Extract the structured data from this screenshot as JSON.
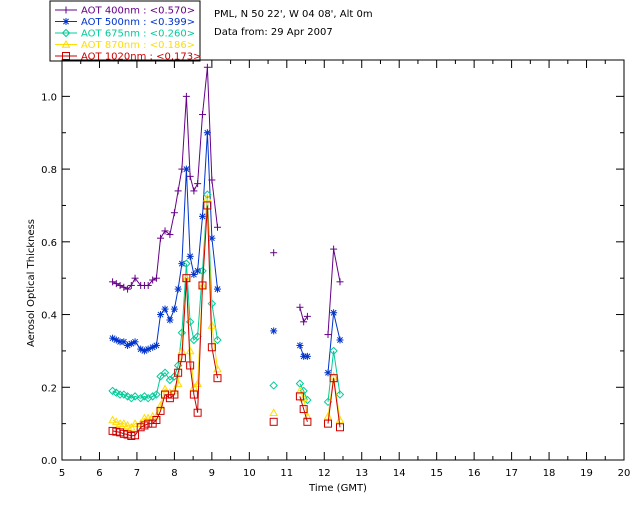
{
  "chart_data": {
    "type": "line",
    "title": "PML, N 50 22', W 04 08', Alt 0m",
    "subtitle": "Data from: 29 Apr 2007",
    "xlabel": "Time (GMT)",
    "ylabel": "Aerosol Optical Thickness",
    "xlim": [
      5,
      20
    ],
    "ylim": [
      0,
      1.1
    ],
    "xticks": [
      "5",
      "6",
      "7",
      "8",
      "9",
      "10",
      "11",
      "12",
      "13",
      "14",
      "15",
      "16",
      "17",
      "18",
      "19",
      "20"
    ],
    "yticks": [
      "0.0",
      "0.2",
      "0.4",
      "0.6",
      "0.8",
      "1.0"
    ],
    "ytick_values": [
      0,
      0.2,
      0.4,
      0.6,
      0.8,
      1.0
    ],
    "grid": false,
    "legend_position": "top-left",
    "series": [
      {
        "name": "AOT  400nm : <0.570>",
        "color": "#660088",
        "marker": "plus",
        "segments": [
          [
            [
              6.35,
              0.49
            ],
            [
              6.45,
              0.485
            ],
            [
              6.55,
              0.48
            ],
            [
              6.65,
              0.475
            ],
            [
              6.75,
              0.47
            ],
            [
              6.85,
              0.48
            ],
            [
              6.95,
              0.5
            ],
            [
              7.1,
              0.48
            ],
            [
              7.2,
              0.48
            ],
            [
              7.3,
              0.48
            ],
            [
              7.42,
              0.495
            ],
            [
              7.52,
              0.5
            ],
            [
              7.63,
              0.61
            ],
            [
              7.75,
              0.63
            ],
            [
              7.88,
              0.62
            ],
            [
              8.0,
              0.68
            ],
            [
              8.1,
              0.74
            ],
            [
              8.2,
              0.8
            ],
            [
              8.32,
              1.0
            ],
            [
              8.42,
              0.78
            ],
            [
              8.52,
              0.74
            ],
            [
              8.62,
              0.76
            ],
            [
              8.75,
              0.95
            ],
            [
              8.88,
              1.08
            ],
            [
              9.0,
              0.77
            ],
            [
              9.15,
              0.64
            ]
          ],
          [
            [
              10.65,
              0.57
            ]
          ],
          [
            [
              11.35,
              0.42
            ],
            [
              11.45,
              0.38
            ],
            [
              11.55,
              0.395
            ]
          ],
          [
            [
              12.1,
              0.345
            ],
            [
              12.25,
              0.58
            ],
            [
              12.42,
              0.49
            ]
          ]
        ]
      },
      {
        "name": "AOT  500nm : <0.399>",
        "color": "#0033cc",
        "marker": "asterisk",
        "segments": [
          [
            [
              6.35,
              0.335
            ],
            [
              6.45,
              0.33
            ],
            [
              6.55,
              0.325
            ],
            [
              6.65,
              0.325
            ],
            [
              6.75,
              0.315
            ],
            [
              6.85,
              0.32
            ],
            [
              6.95,
              0.325
            ],
            [
              7.1,
              0.305
            ],
            [
              7.2,
              0.3
            ],
            [
              7.3,
              0.305
            ],
            [
              7.42,
              0.31
            ],
            [
              7.52,
              0.315
            ],
            [
              7.63,
              0.4
            ],
            [
              7.75,
              0.415
            ],
            [
              7.88,
              0.385
            ],
            [
              8.0,
              0.415
            ],
            [
              8.1,
              0.47
            ],
            [
              8.2,
              0.54
            ],
            [
              8.32,
              0.8
            ],
            [
              8.42,
              0.56
            ],
            [
              8.52,
              0.51
            ],
            [
              8.62,
              0.52
            ],
            [
              8.75,
              0.67
            ],
            [
              8.88,
              0.9
            ],
            [
              9.0,
              0.61
            ],
            [
              9.15,
              0.47
            ]
          ],
          [
            [
              10.65,
              0.355
            ]
          ],
          [
            [
              11.35,
              0.315
            ],
            [
              11.45,
              0.285
            ],
            [
              11.55,
              0.285
            ]
          ],
          [
            [
              12.1,
              0.24
            ],
            [
              12.25,
              0.405
            ],
            [
              12.42,
              0.33
            ]
          ]
        ]
      },
      {
        "name": "AOT  675nm : <0.260>",
        "color": "#00cc99",
        "marker": "diamond",
        "segments": [
          [
            [
              6.35,
              0.19
            ],
            [
              6.45,
              0.185
            ],
            [
              6.55,
              0.18
            ],
            [
              6.65,
              0.18
            ],
            [
              6.75,
              0.175
            ],
            [
              6.85,
              0.17
            ],
            [
              6.95,
              0.175
            ],
            [
              7.1,
              0.17
            ],
            [
              7.2,
              0.175
            ],
            [
              7.3,
              0.17
            ],
            [
              7.42,
              0.175
            ],
            [
              7.52,
              0.18
            ],
            [
              7.63,
              0.23
            ],
            [
              7.75,
              0.24
            ],
            [
              7.88,
              0.22
            ],
            [
              8.0,
              0.23
            ],
            [
              8.1,
              0.26
            ],
            [
              8.2,
              0.35
            ],
            [
              8.32,
              0.54
            ],
            [
              8.42,
              0.38
            ],
            [
              8.52,
              0.33
            ],
            [
              8.62,
              0.34
            ],
            [
              8.75,
              0.52
            ],
            [
              8.88,
              0.73
            ],
            [
              9.0,
              0.43
            ],
            [
              9.15,
              0.33
            ]
          ],
          [
            [
              10.65,
              0.205
            ]
          ],
          [
            [
              11.35,
              0.21
            ],
            [
              11.45,
              0.19
            ],
            [
              11.55,
              0.165
            ]
          ],
          [
            [
              12.1,
              0.16
            ],
            [
              12.25,
              0.3
            ],
            [
              12.42,
              0.18
            ]
          ]
        ]
      },
      {
        "name": "AOT  870nm : <0.186>",
        "color": "#ffdd00",
        "marker": "triangle",
        "segments": [
          [
            [
              6.35,
              0.11
            ],
            [
              6.45,
              0.105
            ],
            [
              6.55,
              0.1
            ],
            [
              6.65,
              0.1
            ],
            [
              6.75,
              0.095
            ],
            [
              6.85,
              0.09
            ],
            [
              6.95,
              0.1
            ],
            [
              7.1,
              0.1
            ],
            [
              7.2,
              0.115
            ],
            [
              7.3,
              0.115
            ],
            [
              7.42,
              0.12
            ],
            [
              7.52,
              0.12
            ],
            [
              7.63,
              0.15
            ],
            [
              7.75,
              0.195
            ],
            [
              7.88,
              0.185
            ],
            [
              8.0,
              0.19
            ],
            [
              8.1,
              0.21
            ],
            [
              8.2,
              0.3
            ],
            [
              8.32,
              0.5
            ],
            [
              8.42,
              0.3
            ],
            [
              8.52,
              0.2
            ],
            [
              8.62,
              0.21
            ],
            [
              8.75,
              0.48
            ],
            [
              8.88,
              0.72
            ],
            [
              9.0,
              0.37
            ],
            [
              9.15,
              0.25
            ]
          ],
          [
            [
              10.65,
              0.13
            ]
          ],
          [
            [
              11.35,
              0.19
            ],
            [
              11.45,
              0.17
            ],
            [
              11.55,
              0.12
            ]
          ],
          [
            [
              12.1,
              0.12
            ],
            [
              12.25,
              0.23
            ],
            [
              12.42,
              0.11
            ]
          ]
        ]
      },
      {
        "name": "AOT 1020nm : <0.173>",
        "color": "#cc0000",
        "marker": "square",
        "segments": [
          [
            [
              6.35,
              0.08
            ],
            [
              6.45,
              0.078
            ],
            [
              6.55,
              0.076
            ],
            [
              6.65,
              0.072
            ],
            [
              6.75,
              0.07
            ],
            [
              6.85,
              0.066
            ],
            [
              6.95,
              0.068
            ],
            [
              7.1,
              0.09
            ],
            [
              7.2,
              0.095
            ],
            [
              7.3,
              0.1
            ],
            [
              7.42,
              0.1
            ],
            [
              7.52,
              0.11
            ],
            [
              7.63,
              0.135
            ],
            [
              7.75,
              0.18
            ],
            [
              7.88,
              0.17
            ],
            [
              8.0,
              0.18
            ],
            [
              8.1,
              0.24
            ],
            [
              8.2,
              0.28
            ],
            [
              8.32,
              0.5
            ],
            [
              8.42,
              0.26
            ],
            [
              8.52,
              0.18
            ],
            [
              8.62,
              0.13
            ],
            [
              8.75,
              0.48
            ],
            [
              8.88,
              0.7
            ],
            [
              9.0,
              0.31
            ],
            [
              9.15,
              0.225
            ]
          ],
          [
            [
              10.65,
              0.105
            ]
          ],
          [
            [
              11.35,
              0.175
            ],
            [
              11.45,
              0.14
            ],
            [
              11.55,
              0.105
            ]
          ],
          [
            [
              12.1,
              0.1
            ],
            [
              12.25,
              0.225
            ],
            [
              12.42,
              0.09
            ]
          ]
        ]
      }
    ]
  }
}
